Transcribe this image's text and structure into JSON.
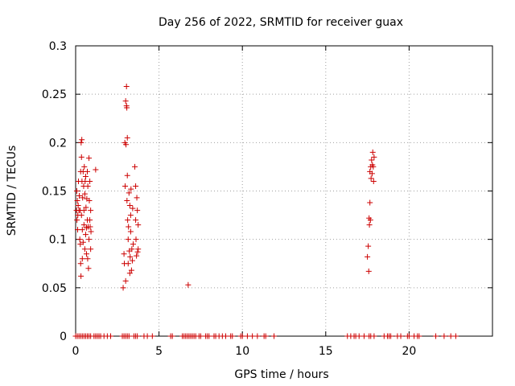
{
  "chart_data": {
    "type": "scatter",
    "title": "Day 256 of 2022, SRMTID for receiver guax",
    "xlabel": "GPS time / hours",
    "ylabel": "SRMTID / TECUs",
    "xlim": [
      0,
      25
    ],
    "ylim": [
      0,
      0.3
    ],
    "xticks": [
      0,
      5,
      10,
      15,
      20
    ],
    "xtick_labels": [
      "0",
      "5",
      "10",
      "15",
      "20"
    ],
    "yticks": [
      0,
      0.05,
      0.1,
      0.15,
      0.2,
      0.25,
      0.3
    ],
    "ytick_labels": [
      "0",
      "0.05",
      "0.1",
      "0.15",
      "0.2",
      "0.25",
      "0.3"
    ],
    "grid": true,
    "marker": "plus",
    "series": [
      {
        "name": "SRMTID",
        "color": "#cc0000",
        "points": [
          [
            0.05,
            0.13
          ],
          [
            0.07,
            0.15
          ],
          [
            0.08,
            0.12
          ],
          [
            0.1,
            0.14
          ],
          [
            0.12,
            0.11
          ],
          [
            0.13,
            0.125
          ],
          [
            0.15,
            0.135
          ],
          [
            0.17,
            0.16
          ],
          [
            0.2,
            0.13
          ],
          [
            0.22,
            0.145
          ],
          [
            0.25,
            0.1
          ],
          [
            0.27,
            0.13
          ],
          [
            0.28,
            0.095
          ],
          [
            0.3,
            0.17
          ],
          [
            0.3,
            0.075
          ],
          [
            0.32,
            0.062
          ],
          [
            0.33,
            0.2
          ],
          [
            0.35,
            0.185
          ],
          [
            0.35,
            0.125
          ],
          [
            0.37,
            0.203
          ],
          [
            0.38,
            0.16
          ],
          [
            0.4,
            0.08
          ],
          [
            0.4,
            0.11
          ],
          [
            0.42,
            0.143
          ],
          [
            0.45,
            0.17
          ],
          [
            0.45,
            0.097
          ],
          [
            0.48,
            0.155
          ],
          [
            0.5,
            0.13
          ],
          [
            0.5,
            0.115
          ],
          [
            0.52,
            0.175
          ],
          [
            0.55,
            0.147
          ],
          [
            0.55,
            0.09
          ],
          [
            0.57,
            0.16
          ],
          [
            0.6,
            0.105
          ],
          [
            0.6,
            0.165
          ],
          [
            0.62,
            0.133
          ],
          [
            0.65,
            0.112
          ],
          [
            0.65,
            0.085
          ],
          [
            0.67,
            0.142
          ],
          [
            0.7,
            0.17
          ],
          [
            0.7,
            0.12
          ],
          [
            0.72,
            0.08
          ],
          [
            0.73,
            0.155
          ],
          [
            0.75,
            0.113
          ],
          [
            0.77,
            0.07
          ],
          [
            0.8,
            0.184
          ],
          [
            0.8,
            0.1
          ],
          [
            0.82,
            0.14
          ],
          [
            0.85,
            0.12
          ],
          [
            0.85,
            0.16
          ],
          [
            0.87,
            0.113
          ],
          [
            0.9,
            0.13
          ],
          [
            0.9,
            0.09
          ],
          [
            0.92,
            0.108
          ],
          [
            1.2,
            0.172
          ],
          [
            2.85,
            0.05
          ],
          [
            2.9,
            0.085
          ],
          [
            2.92,
            0.075
          ],
          [
            2.95,
            0.2
          ],
          [
            2.97,
            0.155
          ],
          [
            3.0,
            0.243
          ],
          [
            3.0,
            0.057
          ],
          [
            3.02,
            0.198
          ],
          [
            3.05,
            0.238
          ],
          [
            3.05,
            0.258
          ],
          [
            3.07,
            0.236
          ],
          [
            3.08,
            0.14
          ],
          [
            3.1,
            0.205
          ],
          [
            3.1,
            0.166
          ],
          [
            3.12,
            0.12
          ],
          [
            3.15,
            0.1
          ],
          [
            3.15,
            0.075
          ],
          [
            3.17,
            0.113
          ],
          [
            3.2,
            0.148
          ],
          [
            3.22,
            0.088
          ],
          [
            3.25,
            0.135
          ],
          [
            3.25,
            0.065
          ],
          [
            3.27,
            0.082
          ],
          [
            3.3,
            0.125
          ],
          [
            3.3,
            0.108
          ],
          [
            3.32,
            0.152
          ],
          [
            3.35,
            0.068
          ],
          [
            3.37,
            0.09
          ],
          [
            3.4,
            0.078
          ],
          [
            3.42,
            0.132
          ],
          [
            3.45,
            0.095
          ],
          [
            3.55,
            0.175
          ],
          [
            3.6,
            0.155
          ],
          [
            3.6,
            0.12
          ],
          [
            3.62,
            0.1
          ],
          [
            3.65,
            0.083
          ],
          [
            3.67,
            0.143
          ],
          [
            3.7,
            0.13
          ],
          [
            3.72,
            0.087
          ],
          [
            3.75,
            0.115
          ],
          [
            3.75,
            0.09
          ],
          [
            6.75,
            0.053
          ],
          [
            17.5,
            0.082
          ],
          [
            17.55,
            0.093
          ],
          [
            17.58,
            0.067
          ],
          [
            17.6,
            0.122
          ],
          [
            17.62,
            0.115
          ],
          [
            17.65,
            0.17
          ],
          [
            17.65,
            0.138
          ],
          [
            17.68,
            0.12
          ],
          [
            17.7,
            0.175
          ],
          [
            17.72,
            0.163
          ],
          [
            17.75,
            0.182
          ],
          [
            17.78,
            0.168
          ],
          [
            17.8,
            0.177
          ],
          [
            17.82,
            0.19
          ],
          [
            17.85,
            0.175
          ],
          [
            17.87,
            0.16
          ],
          [
            17.9,
            0.185
          ]
        ],
        "zero_times": [
          0.0,
          0.1,
          0.2,
          0.3,
          0.4,
          0.5,
          0.6,
          0.7,
          0.8,
          0.9,
          1.1,
          1.2,
          1.3,
          1.4,
          1.5,
          1.7,
          1.9,
          2.1,
          2.8,
          2.9,
          3.0,
          3.1,
          3.2,
          3.5,
          3.6,
          3.7,
          4.1,
          4.3,
          4.6,
          5.7,
          5.8,
          6.4,
          6.5,
          6.6,
          6.7,
          6.8,
          6.9,
          7.0,
          7.1,
          7.2,
          7.4,
          7.5,
          7.8,
          7.9,
          8.0,
          8.3,
          8.4,
          8.6,
          8.8,
          9.0,
          9.3,
          9.4,
          9.9,
          10.0,
          10.3,
          10.6,
          10.9,
          11.3,
          11.4,
          11.9,
          16.3,
          16.5,
          16.7,
          16.8,
          17.0,
          17.3,
          17.6,
          17.7,
          17.9,
          18.5,
          18.7,
          18.8,
          18.9,
          19.3,
          19.5,
          19.9,
          20.0,
          20.3,
          20.5,
          20.6,
          21.6,
          22.1,
          22.5,
          22.8
        ]
      }
    ]
  }
}
